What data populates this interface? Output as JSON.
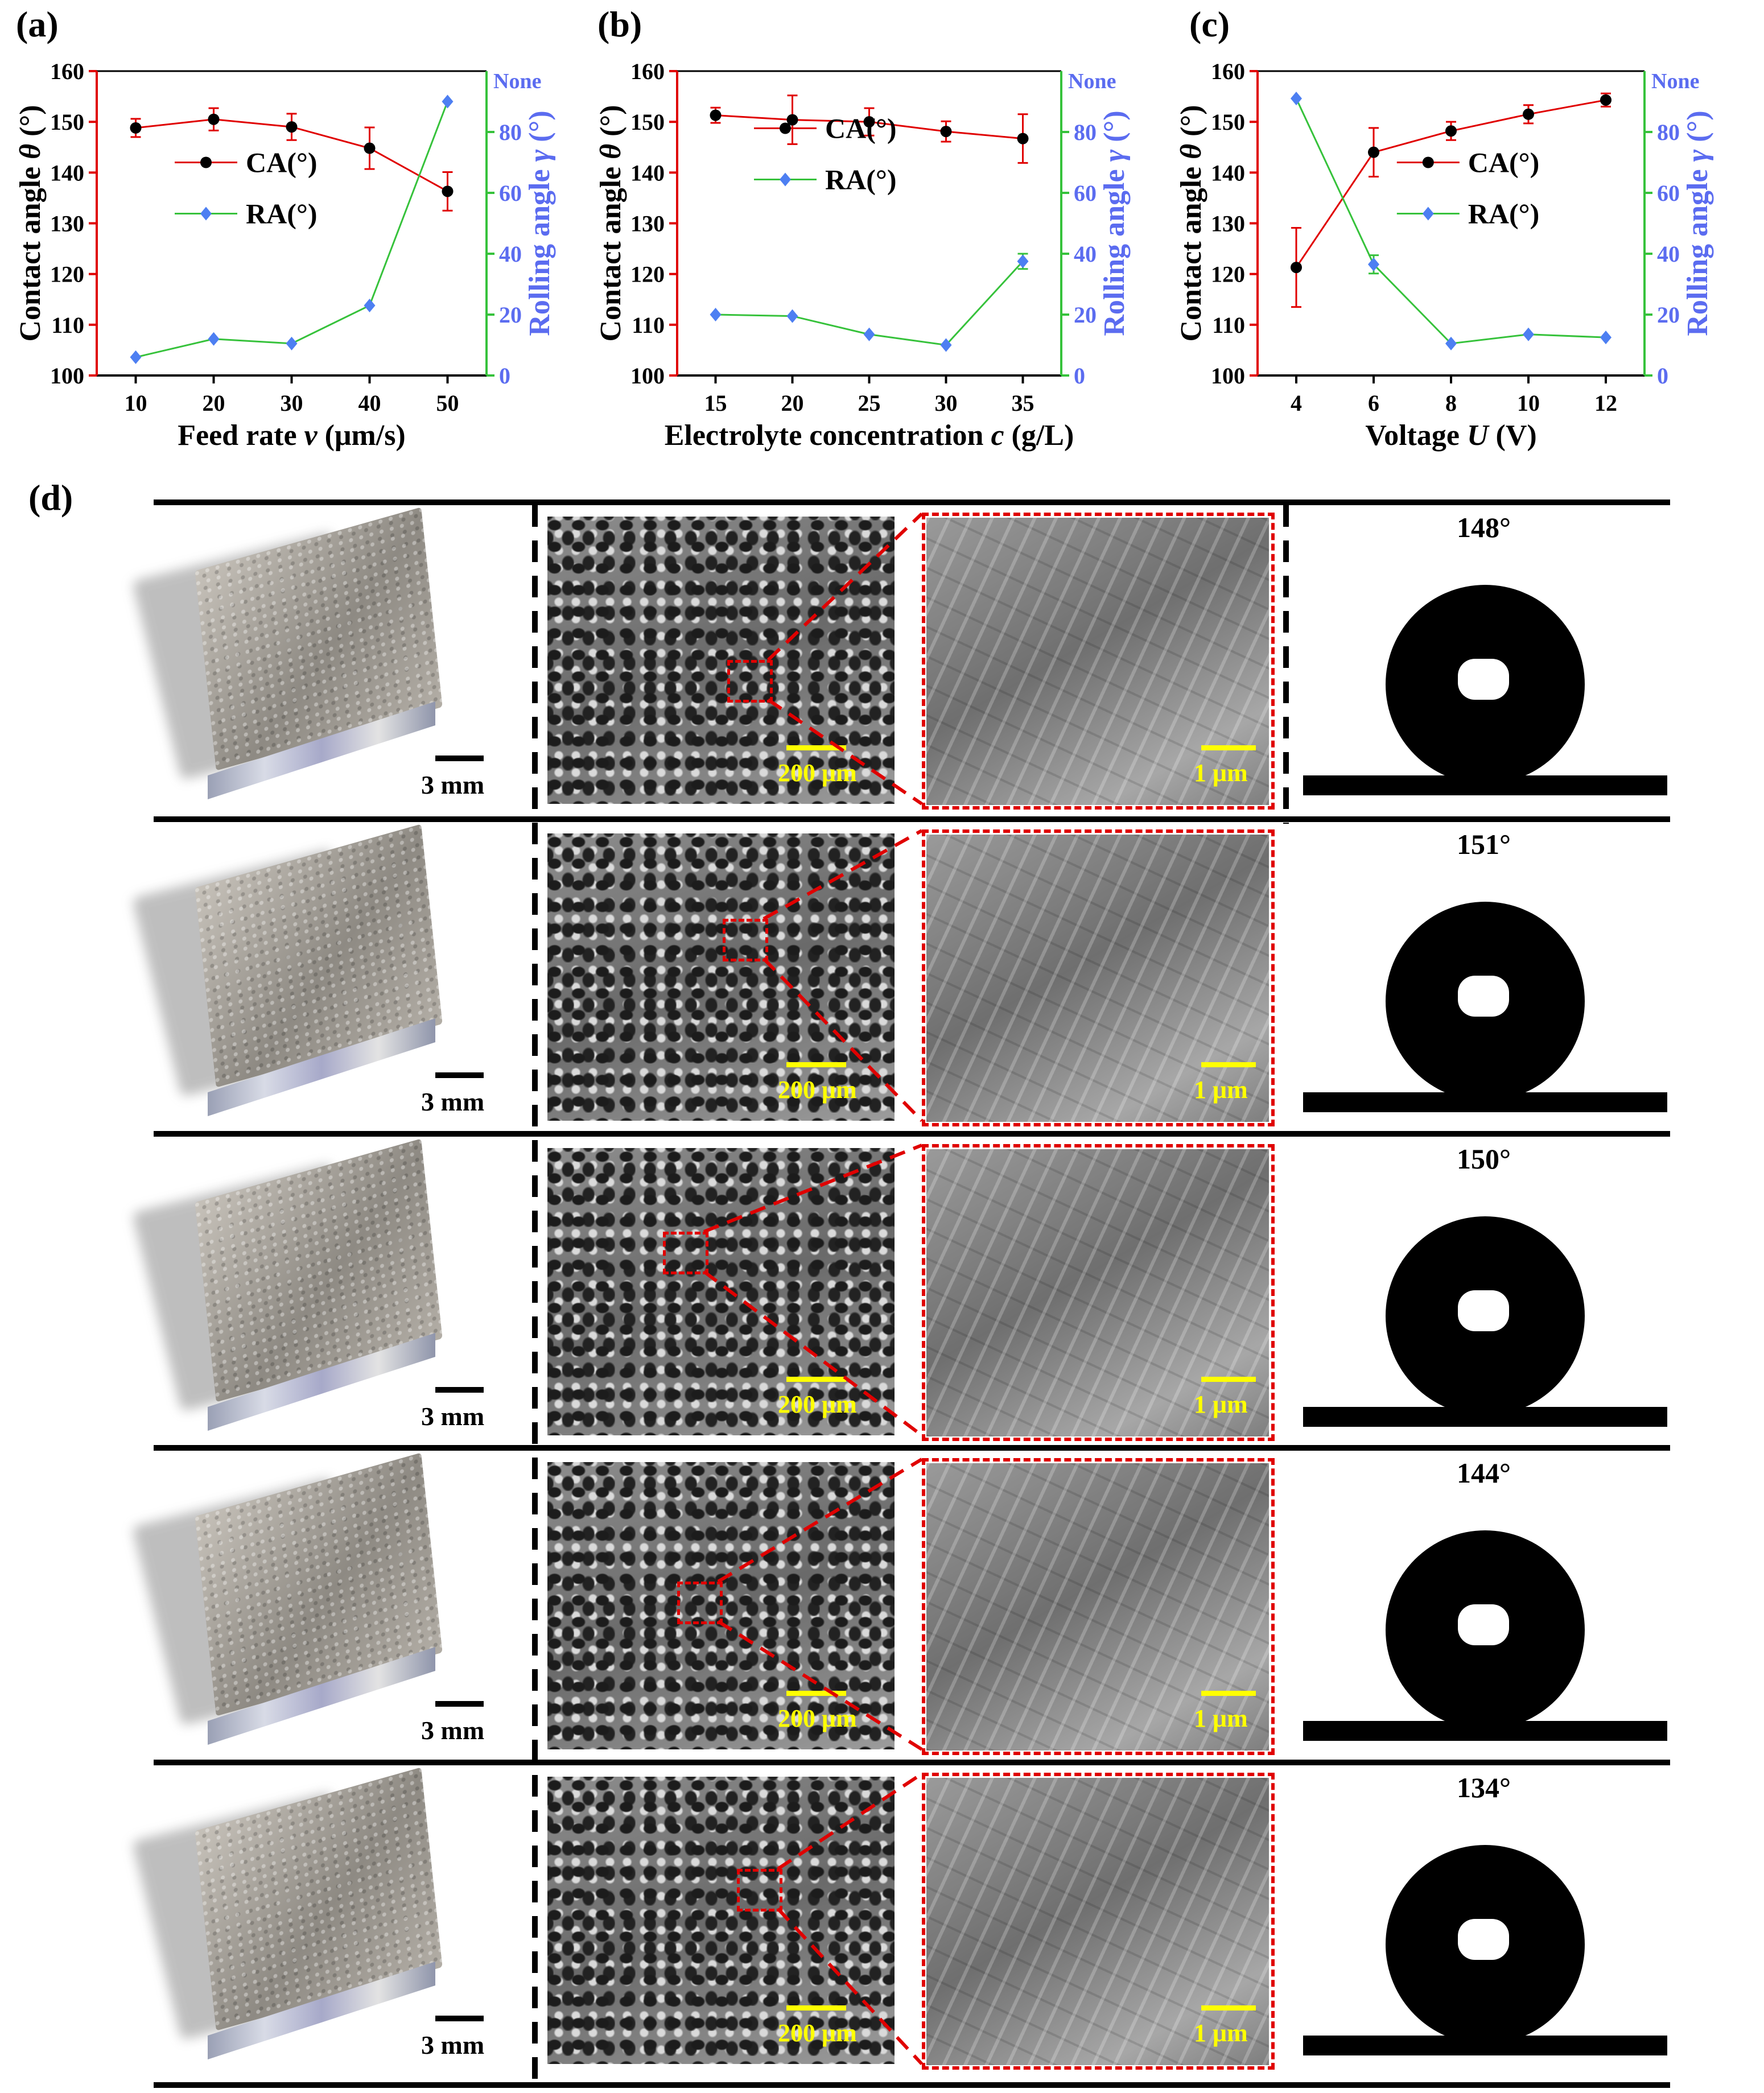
{
  "panels": {
    "a": "(a)",
    "b": "(b)",
    "c": "(c)",
    "d": "(d)"
  },
  "chart_data": [
    {
      "type": "line",
      "panel": "(a)",
      "xlabel_parts": [
        "Feed rate ",
        "v",
        " (μm/s)"
      ],
      "ylabel_left_parts": [
        "Contact angle ",
        "θ",
        " (°)"
      ],
      "ylabel_right_parts": [
        "Rolling angle ",
        "γ",
        " (°)"
      ],
      "x": [
        10,
        20,
        30,
        40,
        50
      ],
      "x_ticks": [
        "10",
        "20",
        "30",
        "40",
        "50"
      ],
      "xlim": [
        5,
        55
      ],
      "ylim_left": [
        100,
        160
      ],
      "yticks_left": [
        100,
        110,
        120,
        130,
        140,
        150,
        160
      ],
      "ylim_right": [
        0,
        100
      ],
      "yticks_right": [
        0,
        20,
        40,
        60,
        80
      ],
      "right_top_label": "None",
      "series": [
        {
          "name": "CA(°)",
          "axis": "left",
          "color": "#e00000",
          "marker": "circle",
          "values": [
            148.8,
            150.5,
            149.0,
            144.8,
            136.3
          ],
          "errors": [
            1.8,
            2.2,
            2.6,
            4.1,
            3.8
          ]
        },
        {
          "name": "RA(°)",
          "axis": "right",
          "color": "#36c23b",
          "marker": "diamond",
          "values": [
            6,
            12,
            10.5,
            23,
            90
          ]
        }
      ],
      "legend_position": "center"
    },
    {
      "type": "line",
      "panel": "(b)",
      "xlabel_parts": [
        "Electrolyte concentration ",
        "c",
        " (g/L)"
      ],
      "ylabel_left_parts": [
        "Contact angle ",
        "θ",
        " (°)"
      ],
      "ylabel_right_parts": [
        "Rolling angle ",
        "γ",
        " (°)"
      ],
      "x": [
        15,
        20,
        25,
        30,
        35
      ],
      "x_ticks": [
        "15",
        "20",
        "25",
        "30",
        "35"
      ],
      "xlim": [
        12.5,
        37.5
      ],
      "ylim_left": [
        100,
        160
      ],
      "yticks_left": [
        100,
        110,
        120,
        130,
        140,
        150,
        160
      ],
      "ylim_right": [
        0,
        100
      ],
      "yticks_right": [
        0,
        20,
        40,
        60,
        80
      ],
      "right_top_label": "None",
      "series": [
        {
          "name": "CA(°)",
          "axis": "left",
          "color": "#e00000",
          "marker": "circle",
          "values": [
            151.3,
            150.4,
            150.0,
            148.1,
            146.7
          ],
          "errors": [
            1.5,
            4.8,
            2.7,
            2.0,
            4.8
          ]
        },
        {
          "name": "RA(°)",
          "axis": "right",
          "color": "#36c23b",
          "marker": "diamond",
          "values": [
            20,
            19.5,
            13.5,
            10,
            37.5
          ],
          "errors": [
            0,
            0,
            0,
            0,
            2.5
          ]
        }
      ],
      "legend_position": "center"
    },
    {
      "type": "line",
      "panel": "(c)",
      "xlabel_parts": [
        "Voltage ",
        "U",
        " (V)"
      ],
      "ylabel_left_parts": [
        "Contact angle ",
        "θ",
        " (°)"
      ],
      "ylabel_right_parts": [
        "Rolling angle ",
        "γ",
        " (°)"
      ],
      "x": [
        4,
        6,
        8,
        10,
        12
      ],
      "x_ticks": [
        "4",
        "6",
        "8",
        "10",
        "12"
      ],
      "xlim": [
        3,
        13
      ],
      "ylim_left": [
        100,
        160
      ],
      "yticks_left": [
        100,
        110,
        120,
        130,
        140,
        150,
        160
      ],
      "ylim_right": [
        0,
        100
      ],
      "yticks_right": [
        0,
        20,
        40,
        60,
        80
      ],
      "right_top_label": "None",
      "series": [
        {
          "name": "CA(°)",
          "axis": "left",
          "color": "#e00000",
          "marker": "circle",
          "values": [
            121.3,
            144.0,
            148.2,
            151.5,
            154.3
          ],
          "errors": [
            7.8,
            4.8,
            1.8,
            1.8,
            1.3
          ]
        },
        {
          "name": "RA(°)",
          "axis": "right",
          "color": "#36c23b",
          "marker": "diamond",
          "values": [
            91,
            36.5,
            10.5,
            13.5,
            12.5
          ],
          "errors": [
            0,
            3,
            0,
            0,
            0
          ]
        }
      ],
      "legend_position": "right"
    }
  ],
  "rows": [
    {
      "macro_scale": "3 mm",
      "sem_low_scale": "200 μm",
      "sem_high_scale": "1 μm",
      "angle": "148°"
    },
    {
      "macro_scale": "3 mm",
      "sem_low_scale": "200 μm",
      "sem_high_scale": "1 μm",
      "angle": "151°"
    },
    {
      "macro_scale": "3 mm",
      "sem_low_scale": "200 μm",
      "sem_high_scale": "1 μm",
      "angle": "150°"
    },
    {
      "macro_scale": "3 mm",
      "sem_low_scale": "200 μm",
      "sem_high_scale": "1 μm",
      "angle": "144°"
    },
    {
      "macro_scale": "3 mm",
      "sem_low_scale": "200 μm",
      "sem_high_scale": "1 μm",
      "angle": "134°"
    }
  ],
  "colors": {
    "ca": "#e00000",
    "ra": "#36c23b",
    "right_axis_label": "#5b6cf0",
    "scale_yellow": "#ffff00",
    "zoom_red": "#e00000"
  }
}
